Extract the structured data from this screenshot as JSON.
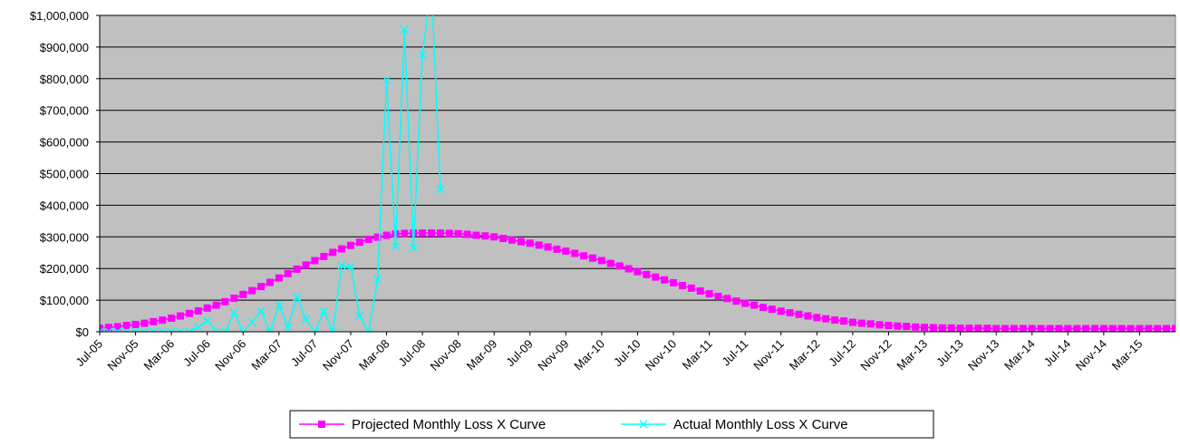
{
  "chart_data": {
    "type": "line",
    "categories": [
      "Jul-05",
      null,
      null,
      null,
      "Nov-05",
      null,
      null,
      null,
      "Mar-06",
      null,
      null,
      null,
      "Jul-06",
      null,
      null,
      null,
      "Nov-06",
      null,
      null,
      null,
      "Mar-07",
      null,
      null,
      null,
      "Jul-07",
      null,
      null,
      null,
      "Nov-07",
      null,
      null,
      null,
      "Mar-08",
      null,
      null,
      null,
      "Jul-08",
      null,
      null,
      null,
      "Nov-08",
      null,
      null,
      null,
      "Mar-09",
      null,
      null,
      null,
      "Jul-09",
      null,
      null,
      null,
      "Nov-09",
      null,
      null,
      null,
      "Mar-10",
      null,
      null,
      null,
      "Jul-10",
      null,
      null,
      null,
      "Nov-10",
      null,
      null,
      null,
      "Mar-11",
      null,
      null,
      null,
      "Jul-11",
      null,
      null,
      null,
      "Nov-11",
      null,
      null,
      null,
      "Mar-12",
      null,
      null,
      null,
      "Jul-12",
      null,
      null,
      null,
      "Nov-12",
      null,
      null,
      null,
      "Mar-13",
      null,
      null,
      null,
      "Jul-13",
      null,
      null,
      null,
      "Nov-13",
      null,
      null,
      null,
      "Mar-14",
      null,
      null,
      null,
      "Jul-14",
      null,
      null,
      null,
      "Nov-14",
      null,
      null,
      null,
      "Mar-15",
      null,
      null,
      null,
      null
    ],
    "series": [
      {
        "name": "Projected Monthly Loss X Curve",
        "color": "#ff00ff",
        "marker": "square",
        "values": [
          11000,
          14000,
          16000,
          20000,
          23000,
          27000,
          32000,
          37000,
          43000,
          50000,
          58000,
          66000,
          75000,
          84000,
          95000,
          106000,
          118000,
          130000,
          143000,
          156000,
          170000,
          184000,
          198000,
          211000,
          225000,
          238000,
          251000,
          262000,
          273000,
          283000,
          292000,
          299000,
          305000,
          309000,
          311000,
          312000,
          312000,
          312000,
          312000,
          311000,
          310000,
          308000,
          305000,
          303000,
          300000,
          295000,
          290000,
          285000,
          280000,
          274000,
          268000,
          261000,
          255000,
          248000,
          240000,
          233000,
          225000,
          216000,
          208000,
          199000,
          190000,
          181000,
          173000,
          164000,
          155000,
          146000,
          138000,
          129000,
          120000,
          112000,
          105000,
          97000,
          90000,
          84000,
          77000,
          71000,
          65000,
          60000,
          55000,
          50000,
          45000,
          41000,
          37000,
          34000,
          30000,
          27000,
          25000,
          22000,
          20000,
          18000,
          17000,
          15000,
          14000,
          13000,
          12000,
          12000,
          11000,
          11000,
          11000,
          11000,
          10000,
          10000,
          10000,
          10000,
          10000,
          10000,
          10000,
          10000,
          10000,
          10000,
          10000,
          10000,
          10000,
          10000,
          10000,
          10000,
          10000,
          10000,
          10000,
          10000,
          10000
        ]
      },
      {
        "name": "Actual Monthly Loss X Curve",
        "color": "#00ffff",
        "marker": "x",
        "values": [
          0,
          0,
          0,
          0,
          0,
          0,
          0,
          0,
          0,
          0,
          0,
          15000,
          35000,
          0,
          0,
          60000,
          0,
          30000,
          65000,
          0,
          85000,
          15000,
          110000,
          40000,
          0,
          65000,
          0,
          210000,
          205000,
          50000,
          0,
          165000,
          795000,
          270000,
          955000,
          265000,
          875000,
          1100000,
          450000,
          null,
          null,
          null,
          null,
          null,
          null,
          null,
          null,
          null,
          null,
          null,
          null,
          null,
          null,
          null,
          null,
          null,
          null,
          null,
          null,
          null,
          null,
          null,
          null,
          null,
          null,
          null,
          null,
          null,
          null,
          null,
          null,
          null,
          null,
          null,
          null,
          null,
          null,
          null,
          null,
          null,
          null,
          null,
          null,
          null,
          null,
          null,
          null,
          null,
          null,
          null,
          null,
          null,
          null,
          null,
          null,
          null,
          null,
          null,
          null,
          null,
          null,
          null,
          null,
          null,
          null,
          null,
          null,
          null,
          null,
          null,
          null,
          null,
          null,
          null,
          null,
          null,
          null,
          null,
          null,
          null,
          null
        ]
      }
    ],
    "ylim": [
      0,
      1000000
    ],
    "yticks": [
      {
        "value": 0,
        "label": "$0"
      },
      {
        "value": 100000,
        "label": "$100,000"
      },
      {
        "value": 200000,
        "label": "$200,000"
      },
      {
        "value": 300000,
        "label": "$300,000"
      },
      {
        "value": 400000,
        "label": "$400,000"
      },
      {
        "value": 500000,
        "label": "$500,000"
      },
      {
        "value": 600000,
        "label": "$600,000"
      },
      {
        "value": 700000,
        "label": "$700,000"
      },
      {
        "value": 800000,
        "label": "$800,000"
      },
      {
        "value": 900000,
        "label": "$900,000"
      },
      {
        "value": 1000000,
        "label": "$1,000,000"
      }
    ],
    "grid": true,
    "plot_background": "#c0c0c0",
    "legend": "bottom"
  }
}
